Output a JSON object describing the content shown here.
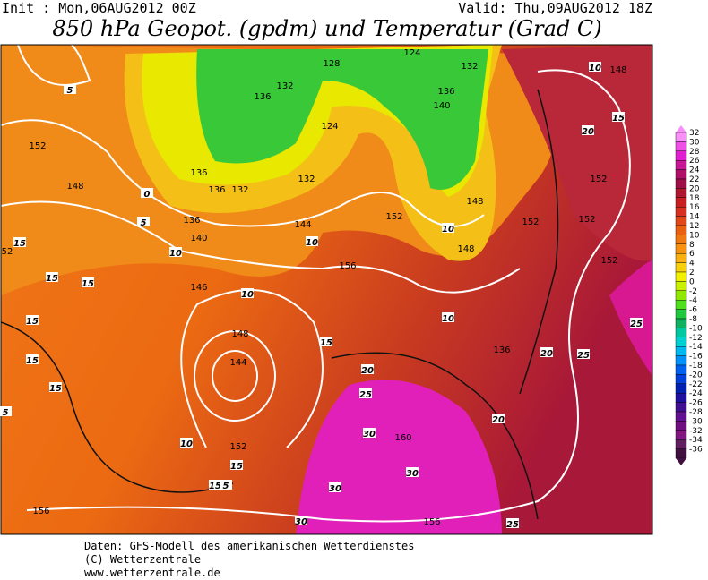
{
  "header": {
    "init": "Init : Mon,06AUG2012 00Z",
    "valid": "Valid: Thu,09AUG2012 18Z",
    "title": "850 hPa Geopot. (gpdm) und Temperatur (Grad C)"
  },
  "legend": {
    "levels": [
      32,
      30,
      28,
      26,
      24,
      22,
      20,
      18,
      16,
      14,
      12,
      10,
      8,
      6,
      4,
      2,
      0,
      -2,
      -4,
      -6,
      -8,
      -10,
      -12,
      -14,
      -16,
      -18,
      -20,
      -22,
      -24,
      -26,
      -28,
      -30,
      -32,
      -34,
      -36
    ],
    "colors": [
      "#f890f8",
      "#f050e8",
      "#e020d0",
      "#c81898",
      "#b01068",
      "#a01048",
      "#b01830",
      "#c82020",
      "#d83020",
      "#e04818",
      "#e86010",
      "#f07810",
      "#f89010",
      "#f8b010",
      "#f8d010",
      "#f0f000",
      "#c8f000",
      "#90e800",
      "#50e020",
      "#20c840",
      "#10b060",
      "#00c8a0",
      "#00d0d0",
      "#00b8f0",
      "#0090f8",
      "#0060f0",
      "#0040d8",
      "#0020b0",
      "#2010a0",
      "#401090",
      "#601090",
      "#701080",
      "#801880",
      "#602060",
      "#401040"
    ]
  },
  "map": {
    "geopotential_labels": [
      "152",
      "148",
      "140",
      "146",
      "148",
      "144",
      "152",
      "156",
      "156",
      "152",
      "156",
      "152",
      "152",
      "152",
      "152",
      "148",
      "148",
      "136",
      "160",
      "128",
      "136",
      "132",
      "124",
      "136",
      "136",
      "132",
      "132",
      "140",
      "136",
      "132",
      "124",
      "148",
      "144",
      "136",
      "52"
    ],
    "temperature_labels": [
      "15",
      "15",
      "15",
      "15",
      "15",
      "15",
      "5",
      "10",
      "10",
      "10",
      "15",
      "15",
      "5",
      "15",
      "20",
      "25",
      "30",
      "30",
      "30",
      "30",
      "25",
      "20",
      "20",
      "25",
      "25",
      "10",
      "10",
      "0",
      "5",
      "20",
      "15",
      "10",
      "10",
      "5"
    ]
  },
  "footer": {
    "line1": "Daten: GFS-Modell des amerikanischen Wetterdienstes",
    "line2": "(C) Wetterzentrale",
    "line3": "www.wetterzentrale.de"
  }
}
